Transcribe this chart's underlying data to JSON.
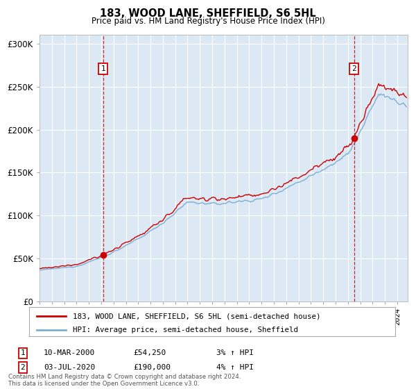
{
  "title": "183, WOOD LANE, SHEFFIELD, S6 5HL",
  "subtitle": "Price paid vs. HM Land Registry's House Price Index (HPI)",
  "legend_line1": "183, WOOD LANE, SHEFFIELD, S6 5HL (semi-detached house)",
  "legend_line2": "HPI: Average price, semi-detached house, Sheffield",
  "annotation1_date": "10-MAR-2000",
  "annotation1_price": "£54,250",
  "annotation1_hpi": "3% ↑ HPI",
  "annotation2_date": "03-JUL-2020",
  "annotation2_price": "£190,000",
  "annotation2_hpi": "4% ↑ HPI",
  "footer": "Contains HM Land Registry data © Crown copyright and database right 2024.\nThis data is licensed under the Open Government Licence v3.0.",
  "line_red": "#cc0000",
  "line_blue": "#7bafd4",
  "bg_color": "#dce9f5",
  "annotation_box_color": "#cc0000",
  "vline_color": "#cc0000",
  "sale1_year": 2000.19,
  "sale1_price": 54250,
  "sale2_year": 2020.51,
  "sale2_price": 190000,
  "ylim_min": 0,
  "ylim_max": 310000,
  "yticks": [
    0,
    50000,
    100000,
    150000,
    200000,
    250000,
    300000
  ],
  "ytick_labels": [
    "£0",
    "£50K",
    "£100K",
    "£150K",
    "£200K",
    "£250K",
    "£300K"
  ],
  "xmin": 1995,
  "xmax": 2025
}
